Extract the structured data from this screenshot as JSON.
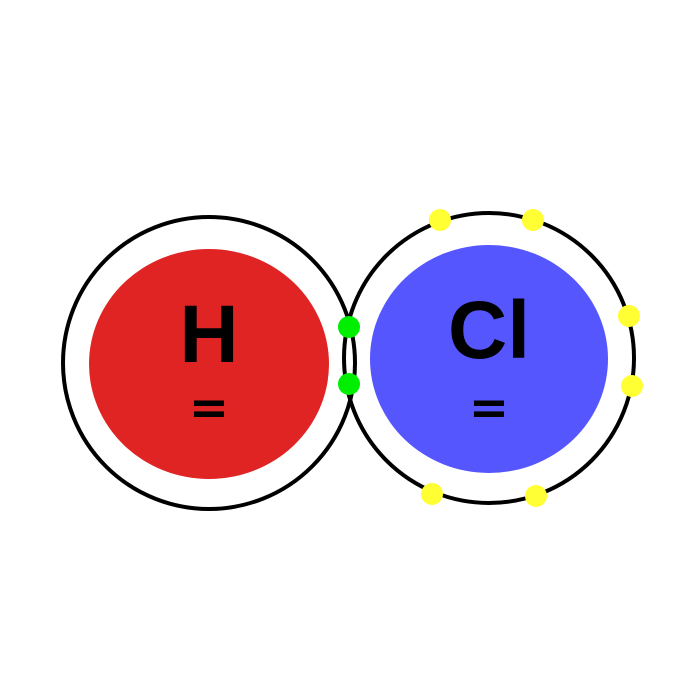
{
  "diagram": {
    "title": "",
    "atoms": [
      {
        "id": "hydrogen",
        "symbol": "H",
        "charge_mark": "=",
        "nucleus_color": "#e02424",
        "shell_color": "#000000"
      },
      {
        "id": "chlorine",
        "symbol": "Cl",
        "charge_mark": "=",
        "nucleus_color": "#5656ff",
        "shell_color": "#000000"
      }
    ],
    "electrons": {
      "shared": {
        "count": 2,
        "color": "#00ee00"
      },
      "lone": {
        "count": 6,
        "color": "#ffff33"
      }
    }
  }
}
